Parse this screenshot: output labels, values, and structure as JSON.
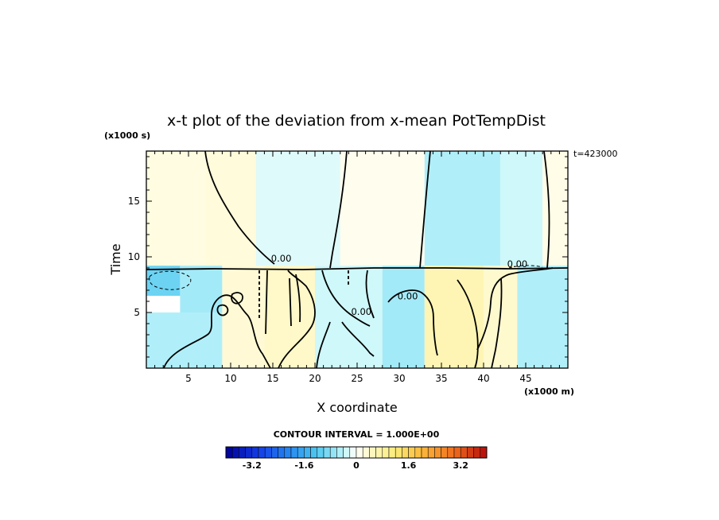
{
  "chart_data": {
    "type": "heatmap",
    "title": "x-t plot of the deviation from x-mean PotTempDist",
    "xlabel": "X coordinate",
    "ylabel": "Time",
    "x_unit": "(x1000 m)",
    "y_unit": "(x1000 s)",
    "time_stamp": "t=423000",
    "xlim": [
      0,
      50
    ],
    "ylim": [
      0,
      19.5
    ],
    "x_ticks": [
      5,
      10,
      15,
      20,
      25,
      30,
      35,
      40,
      45
    ],
    "y_ticks": [
      5,
      10,
      15
    ],
    "contour_interval_label": "CONTOUR INTERVAL = 1.000E+00",
    "contour_labels": [
      {
        "text": "0.00",
        "x": 16,
        "y": 9.8
      },
      {
        "text": "0.00",
        "x": 44,
        "y": 9.3
      },
      {
        "text": "0.00",
        "x": 31,
        "y": 6.4
      },
      {
        "text": "0.00",
        "x": 25.5,
        "y": 5.0
      }
    ],
    "colorbar": {
      "min": -4.0,
      "max": 4.0,
      "step": 0.2,
      "tick_labels": [
        "-3.2",
        "-1.6",
        "0",
        "1.6",
        "3.2"
      ],
      "tick_values": [
        -3.2,
        -1.6,
        0,
        1.6,
        3.2
      ]
    },
    "regions": [
      {
        "x0": 0,
        "x1": 7,
        "y0": 9.2,
        "y1": 19.5,
        "value": 0.2
      },
      {
        "x0": 7,
        "x1": 13,
        "y0": 9.2,
        "y1": 19.5,
        "value": 0.25
      },
      {
        "x0": 13,
        "x1": 23,
        "y0": 9.2,
        "y1": 19.5,
        "value": -0.2
      },
      {
        "x0": 23,
        "x1": 33,
        "y0": 9.2,
        "y1": 19.5,
        "value": 0.1
      },
      {
        "x0": 33,
        "x1": 42,
        "y0": 9.2,
        "y1": 19.5,
        "value": -0.5
      },
      {
        "x0": 42,
        "x1": 47,
        "y0": 9.2,
        "y1": 19.5,
        "value": -0.3
      },
      {
        "x0": 47,
        "x1": 50,
        "y0": 9.2,
        "y1": 19.5,
        "value": 0.15
      },
      {
        "x0": 0,
        "x1": 4,
        "y0": 6.5,
        "y1": 9.2,
        "value": -1.0
      },
      {
        "x0": 4,
        "x1": 9,
        "y0": 5,
        "y1": 9.2,
        "value": -0.6
      },
      {
        "x0": 0,
        "x1": 9,
        "y0": 0,
        "y1": 5,
        "value": -0.5
      },
      {
        "x0": 9,
        "x1": 14,
        "y0": 0,
        "y1": 9.2,
        "value": 0.3
      },
      {
        "x0": 14,
        "x1": 20,
        "y0": 0,
        "y1": 9.2,
        "value": 0.4
      },
      {
        "x0": 20,
        "x1": 28,
        "y0": 0,
        "y1": 9.2,
        "value": -0.3
      },
      {
        "x0": 28,
        "x1": 33,
        "y0": 0,
        "y1": 9.2,
        "value": -0.6
      },
      {
        "x0": 33,
        "x1": 40,
        "y0": 0,
        "y1": 9.2,
        "value": 0.6
      },
      {
        "x0": 40,
        "x1": 44,
        "y0": 0,
        "y1": 9.2,
        "value": 0.35
      },
      {
        "x0": 44,
        "x1": 50,
        "y0": 0,
        "y1": 9.2,
        "value": -0.5
      }
    ]
  }
}
